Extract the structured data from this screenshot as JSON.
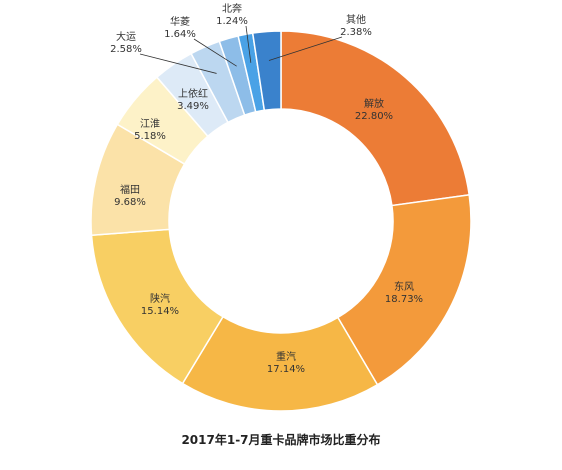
{
  "chart_data": {
    "type": "donut",
    "title": "2017年1-7月重卡品牌市场比重分布",
    "start_angle_deg": 0,
    "direction": "clockwise",
    "slices": [
      {
        "name": "解放",
        "value": 22.8,
        "label": "22.80%",
        "color": "#ec7c36"
      },
      {
        "name": "东风",
        "value": 18.73,
        "label": "18.73%",
        "color": "#f39a3b"
      },
      {
        "name": "重汽",
        "value": 17.14,
        "label": "17.14%",
        "color": "#f6b746"
      },
      {
        "name": "陕汽",
        "value": 15.14,
        "label": "15.14%",
        "color": "#f8cf63"
      },
      {
        "name": "福田",
        "value": 9.68,
        "label": "9.68%",
        "color": "#fbe2a8"
      },
      {
        "name": "江淮",
        "value": 5.18,
        "label": "5.18%",
        "color": "#fdf2c8"
      },
      {
        "name": "上依红",
        "value": 3.49,
        "label": "3.49%",
        "color": "#ddeaf7"
      },
      {
        "name": "大运",
        "value": 2.58,
        "label": "2.58%",
        "color": "#bcd7f0"
      },
      {
        "name": "华菱",
        "value": 1.64,
        "label": "1.64%",
        "color": "#8dbde8"
      },
      {
        "name": "北奔",
        "value": 1.24,
        "label": "1.24%",
        "color": "#4aa2e6"
      },
      {
        "name": "其他",
        "value": 2.38,
        "label": "2.38%",
        "color": "#3a82cc"
      }
    ]
  }
}
